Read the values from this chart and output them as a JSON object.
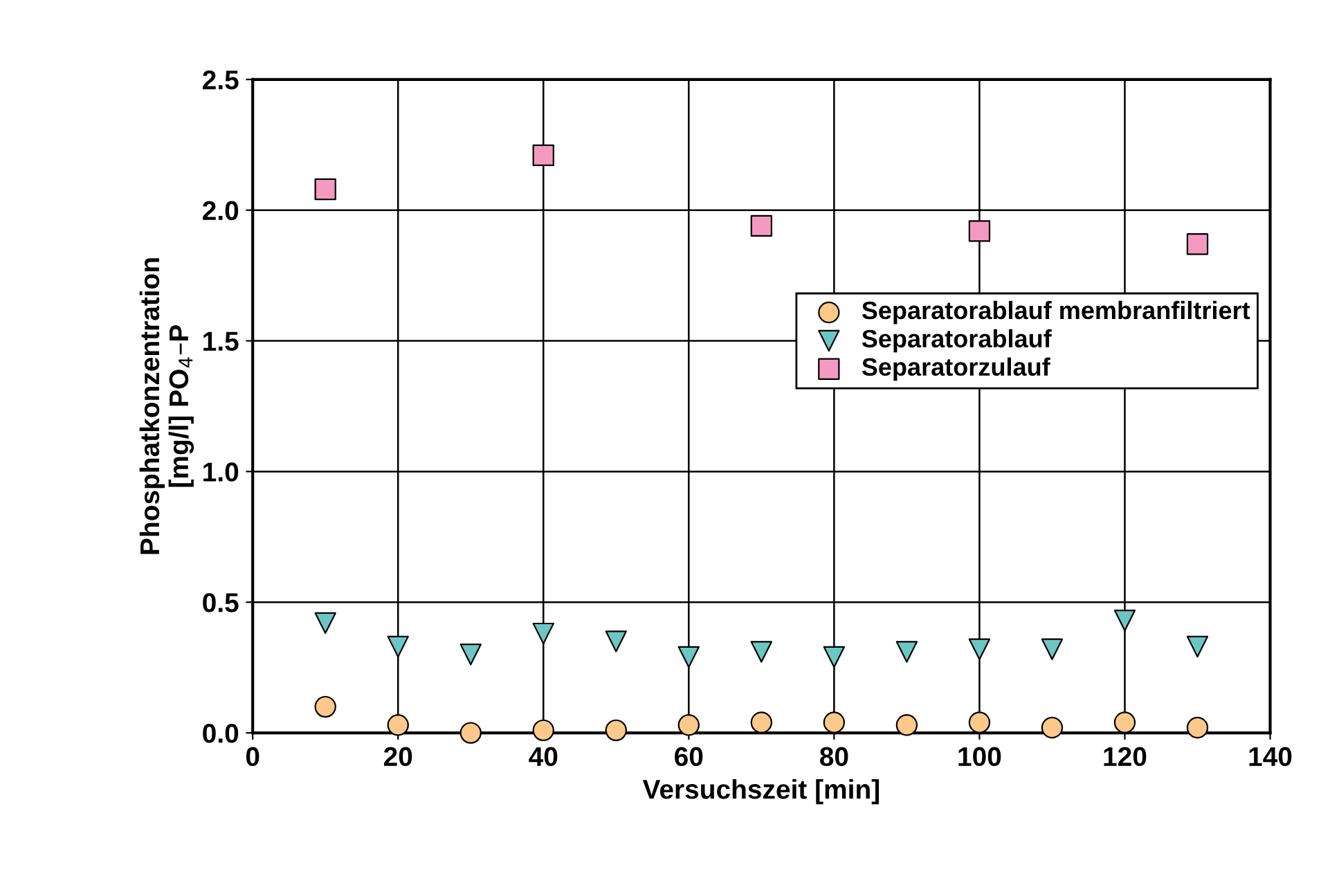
{
  "chart_data": {
    "type": "scatter",
    "xlabel": "Versuchszeit [min]",
    "ylabel": "Phosphatkonzentration\n[mg/l] PO$_{4}$–P",
    "xlim": [
      0,
      140
    ],
    "xticks": [
      0,
      20,
      40,
      60,
      80,
      100,
      120,
      140
    ],
    "ylim": [
      0,
      2.5
    ],
    "yticks": [
      {
        "value": 0,
        "label": "0.0"
      },
      {
        "value": 0.5,
        "label": "0.5"
      },
      {
        "value": 1,
        "label": "1.0"
      },
      {
        "value": 1.5,
        "label": "1.5"
      },
      {
        "value": 2,
        "label": "2.0"
      },
      {
        "value": 2.5,
        "label": "2.5"
      }
    ],
    "grid": true,
    "legend": "right",
    "series": [
      {
        "name": "Separatorablauf membranfiltriert",
        "color": "#fdc98a",
        "marker": "circle",
        "x": [
          10,
          20,
          30,
          40,
          50,
          60,
          70,
          80,
          90,
          100,
          110,
          120,
          130
        ],
        "values": [
          0.1,
          0.03,
          0.0,
          0.01,
          0.01,
          0.03,
          0.04,
          0.04,
          0.03,
          0.04,
          0.02,
          0.04,
          0.02
        ]
      },
      {
        "name": "Separatorablauf",
        "color": "#6cc7c4",
        "marker": "triangle",
        "x": [
          10,
          20,
          30,
          40,
          50,
          60,
          70,
          80,
          90,
          100,
          110,
          120,
          130
        ],
        "values": [
          0.42,
          0.33,
          0.3,
          0.38,
          0.35,
          0.29,
          0.31,
          0.29,
          0.31,
          0.32,
          0.32,
          0.43,
          0.33
        ]
      },
      {
        "name": "Separatorzulauf",
        "color": "#f49ac1",
        "marker": "square",
        "x": [
          10,
          40,
          70,
          100,
          130
        ],
        "values": [
          2.08,
          2.21,
          1.94,
          1.92,
          1.87
        ]
      }
    ]
  }
}
